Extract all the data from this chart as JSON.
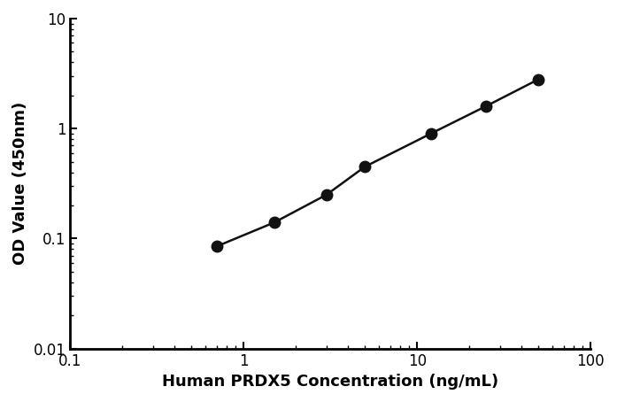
{
  "x": [
    0.7,
    1.5,
    3.0,
    5.0,
    12.0,
    25.0,
    50.0
  ],
  "y": [
    0.085,
    0.14,
    0.25,
    0.45,
    0.9,
    1.6,
    2.8
  ],
  "xlabel": "Human PRDX5 Concentration (ng/mL)",
  "ylabel": "OD Value (450nm)",
  "xlim": [
    0.1,
    100
  ],
  "ylim": [
    0.01,
    10
  ],
  "xtick_labels": [
    "0.1",
    "1",
    "10",
    "100"
  ],
  "xtick_values": [
    0.1,
    1,
    10,
    100
  ],
  "ytick_labels": [
    "0.01",
    "0.1",
    "1",
    "10"
  ],
  "ytick_values": [
    0.01,
    0.1,
    1,
    10
  ],
  "line_color": "#111111",
  "marker_color": "#111111",
  "marker_size": 9,
  "line_width": 1.8,
  "background_color": "#ffffff",
  "label_fontsize": 13,
  "tick_fontsize": 12
}
